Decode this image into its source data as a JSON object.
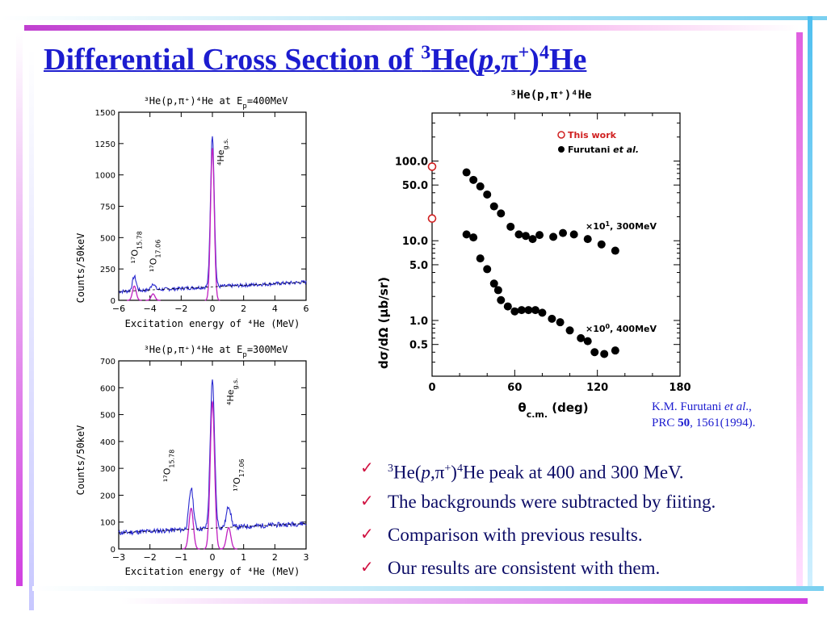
{
  "slide": {
    "title_main": "Differential Cross Section of ",
    "title_sup3": "3",
    "title_he": "He(",
    "title_p": "p",
    "title_comma_pi": ",π",
    "title_plus": "+",
    "title_close": ")",
    "title_sup4": "4",
    "title_he2": "He"
  },
  "reference": {
    "line1_a": "K.M. Furutani ",
    "line1_etal": "et al",
    "line1_b": ".,",
    "line2_a": "PRC ",
    "line2_vol": "50",
    "line2_b": ", 1561(1994)."
  },
  "bullets": [
    {
      "pre": "",
      "sup1": "3",
      "he": "He(",
      "p": "p",
      "mid": ",π",
      "sup2": "+",
      "close": ")",
      "sup3": "4",
      "rest": "He peak at 400 and 300 MeV."
    },
    {
      "rest": "The backgrounds were subtracted by fiiting."
    },
    {
      "rest": "Comparison with previous results."
    },
    {
      "rest": "Our results are consistent with them."
    }
  ],
  "colors": {
    "title": "#1c1ccf",
    "spectrum": "#2a2acf",
    "fit": "#c020c0",
    "accent_bar": "#d040e0",
    "accent_bar_light": "#7ad0f0",
    "this_work": "#d02020"
  },
  "chart_data": [
    {
      "type": "line",
      "title": "³He(p,π⁺)⁴He at E_p = 400 MeV",
      "xlabel": "Excitation energy of ⁴He (MeV)",
      "ylabel": "Counts/50keV",
      "xlim": [
        -6,
        6
      ],
      "ylim": [
        0,
        1500
      ],
      "xticks": [
        -6,
        -4,
        -2,
        0,
        2,
        4,
        6
      ],
      "yticks": [
        0,
        250,
        500,
        750,
        1000,
        1250,
        1500
      ],
      "annotations": [
        "¹⁷O15.78",
        "¹⁷O17.06",
        "⁴He g.s."
      ],
      "peaks": [
        {
          "label": "¹⁷O15.78",
          "x": -5.0,
          "height": 190
        },
        {
          "label": "¹⁷O17.06",
          "x": -3.8,
          "height": 135
        },
        {
          "label": "⁴He g.s.",
          "x": 0.0,
          "height": 1320
        }
      ],
      "background": {
        "y_at_xmin": 70,
        "y_at_xmax": 145
      }
    },
    {
      "type": "line",
      "title": "³He(p,π⁺)⁴He at E_p = 300 MeV",
      "xlabel": "Excitation energy of ⁴He (MeV)",
      "ylabel": "Counts/50keV",
      "xlim": [
        -3,
        3
      ],
      "ylim": [
        0,
        700
      ],
      "xticks": [
        -3,
        -2,
        -1,
        0,
        1,
        2,
        3
      ],
      "yticks": [
        0,
        100,
        200,
        300,
        400,
        500,
        600,
        700
      ],
      "annotations": [
        "¹⁷O15.78",
        "⁴He g.s.",
        "¹⁷O17.06"
      ],
      "peaks": [
        {
          "label": "¹⁷O15.78",
          "x": -0.68,
          "height": 225
        },
        {
          "label": "⁴He g.s.",
          "x": 0.0,
          "height": 625
        },
        {
          "label": "¹⁷O17.06",
          "x": 0.52,
          "height": 160
        }
      ],
      "background": {
        "y_at_xmin": 60,
        "y_at_xmax": 95
      }
    },
    {
      "type": "scatter",
      "title": "³He(p,π⁺)⁴He",
      "xlabel": "θc.m. (deg)",
      "ylabel": "dσ/dΩ (μb/sr)",
      "xlim": [
        0,
        180
      ],
      "ylim": [
        0.2,
        400
      ],
      "yscale": "log",
      "xticks": [
        0,
        60,
        120,
        180
      ],
      "yticks": [
        0.5,
        1.0,
        5.0,
        10.0,
        50.0,
        100.0
      ],
      "legend": [
        "This work",
        "Furutani et al."
      ],
      "legend_position": "top-right",
      "curve_labels": [
        "×10¹, 300MeV",
        "×10⁰, 400MeV"
      ],
      "series": [
        {
          "name": "This work",
          "x": [
            0,
            0
          ],
          "y": [
            85,
            19
          ]
        },
        {
          "name": "Furutani et al. 300 MeV ×10",
          "x": [
            25,
            30,
            35,
            40,
            45,
            50,
            57,
            63,
            68,
            73,
            78,
            88,
            95,
            103,
            113,
            123,
            133
          ],
          "y": [
            72,
            58,
            48,
            38,
            27,
            22,
            15,
            12,
            11.5,
            10.5,
            11.8,
            11.2,
            12.5,
            12,
            10.5,
            9,
            7.5
          ]
        },
        {
          "name": "Furutani et al. 400 MeV ×1",
          "x": [
            25,
            30,
            35,
            40,
            45,
            48,
            50,
            55,
            60,
            65,
            70,
            75,
            80,
            87,
            93,
            100,
            108,
            113,
            118,
            125,
            133
          ],
          "y": [
            12,
            11,
            6,
            4.4,
            2.9,
            2.4,
            1.8,
            1.5,
            1.3,
            1.35,
            1.35,
            1.35,
            1.25,
            1.05,
            0.95,
            0.75,
            0.6,
            0.55,
            0.4,
            0.38,
            0.42
          ]
        }
      ]
    }
  ]
}
